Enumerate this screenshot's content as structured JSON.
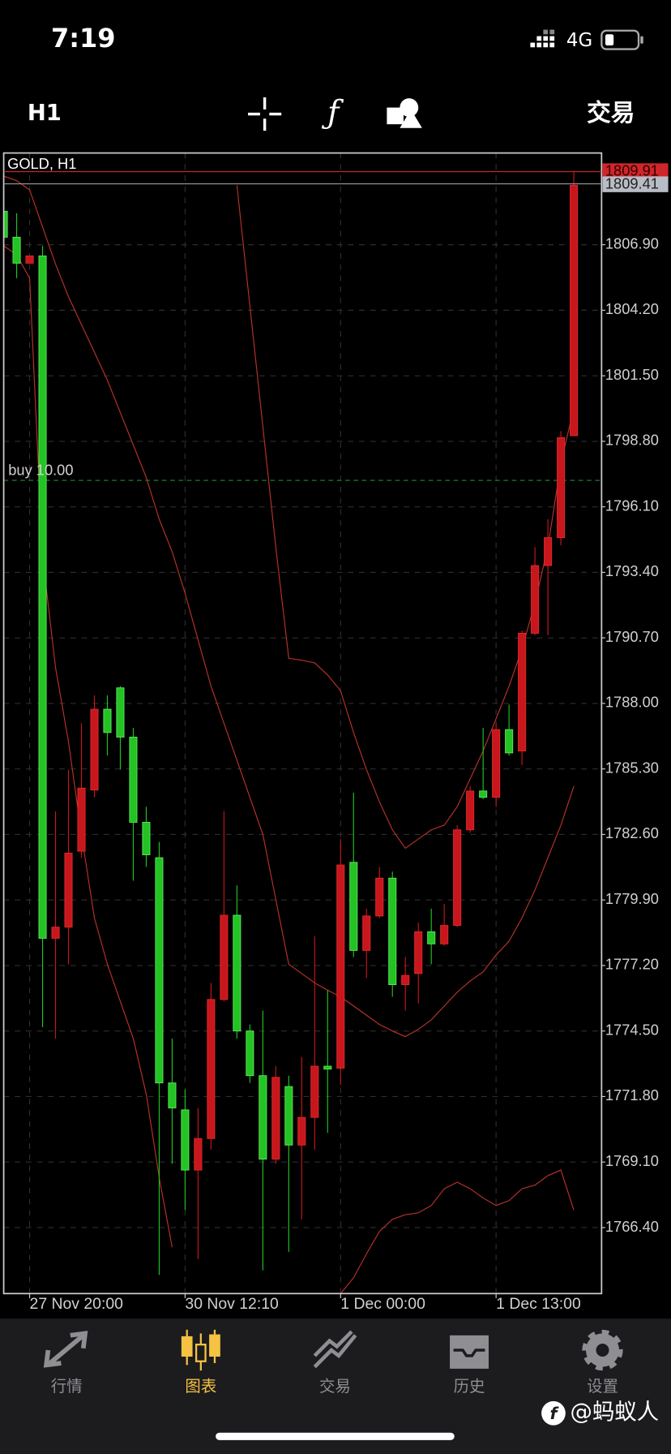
{
  "status_bar": {
    "time": "7:19",
    "network": "4G"
  },
  "toolbar": {
    "timeframe": "H1",
    "trade": "交易"
  },
  "chart_data": {
    "type": "candlestick",
    "title": "GOLD, H1",
    "categories": [
      null,
      null,
      "27 Nov 20:00",
      null,
      null,
      null,
      null,
      null,
      null,
      null,
      null,
      null,
      null,
      null,
      "30 Nov 12:10",
      null,
      null,
      null,
      null,
      null,
      null,
      null,
      null,
      null,
      null,
      null,
      "1 Dec 00:00",
      null,
      null,
      null,
      null,
      null,
      null,
      null,
      null,
      null,
      null,
      null,
      "1 Dec 13:00",
      null,
      null,
      null,
      null,
      null,
      null
    ],
    "open": [
      1808.28,
      1807.21,
      1806.14,
      1806.44,
      1778.32,
      1778.78,
      1781.91,
      1784.43,
      1787.76,
      1788.64,
      1786.61,
      1783.1,
      1781.64,
      1772.36,
      1771.25,
      1768.77,
      1770.07,
      1775.8,
      1779.27,
      1774.5,
      1772.66,
      1769.22,
      1772.21,
      1769.8,
      1770.94,
      1773.05,
      1772.97,
      1781.45,
      1777.82,
      1779.24,
      1780.8,
      1776.41,
      1776.87,
      1778.59,
      1778.09,
      1778.85,
      1782.79,
      1784.39,
      1784.13,
      1786.92,
      1786.04,
      1790.89,
      1793.68,
      1794.83,
      1799.03
    ],
    "high": [
      1808.4,
      1808.2,
      1806.44,
      1806.86,
      1783.55,
      1785.27,
      1787.18,
      1788.33,
      1788.33,
      1788.71,
      1786.99,
      1783.74,
      1782.29,
      1774.19,
      1772.09,
      1771.33,
      1776.48,
      1783.55,
      1780.5,
      1774.77,
      1775.34,
      1773.05,
      1772.66,
      1773.43,
      1778.4,
      1776.18,
      1782.41,
      1784.32,
      1779.54,
      1781.26,
      1781.07,
      1777.55,
      1778.97,
      1779.54,
      1779.73,
      1782.98,
      1784.59,
      1786.99,
      1787.18,
      1787.95,
      1791.0,
      1794.44,
      1795.59,
      1799.22,
      1809.92
    ],
    "low": [
      1807.1,
      1805.52,
      1806.14,
      1774.65,
      1774.19,
      1777.25,
      1781.64,
      1784.13,
      1785.85,
      1785.27,
      1780.69,
      1781.26,
      1764.45,
      1769.03,
      1767.12,
      1765.1,
      1769.61,
      1775.72,
      1774.19,
      1772.36,
      1764.64,
      1769.03,
      1765.4,
      1766.74,
      1769.61,
      1770.3,
      1772.28,
      1777.55,
      1776.68,
      1779.16,
      1775.91,
      1775.34,
      1775.64,
      1777.25,
      1778.01,
      1778.78,
      1782.67,
      1784.05,
      1783.74,
      1785.85,
      1785.46,
      1790.81,
      1790.81,
      1794.52,
      1799.03
    ],
    "close": [
      1807.21,
      1806.14,
      1806.44,
      1778.32,
      1778.78,
      1781.83,
      1784.51,
      1787.76,
      1786.8,
      1786.61,
      1783.1,
      1781.76,
      1772.36,
      1771.33,
      1768.77,
      1770.07,
      1775.8,
      1779.27,
      1774.5,
      1772.66,
      1769.22,
      1772.59,
      1769.8,
      1770.94,
      1773.05,
      1772.93,
      1781.34,
      1777.82,
      1779.24,
      1780.8,
      1776.41,
      1776.79,
      1778.59,
      1778.09,
      1778.85,
      1782.79,
      1784.39,
      1784.13,
      1786.92,
      1785.96,
      1790.89,
      1793.68,
      1794.83,
      1798.95,
      1809.35
    ],
    "up_color": "#c8161d",
    "down_color": "#22c322",
    "indicators": [
      {
        "color": "#b8332a",
        "values": [
          null,
          null,
          null,
          null,
          null,
          null,
          null,
          null,
          null,
          null,
          null,
          null,
          null,
          null,
          null,
          null,
          null,
          null,
          1809.35,
          1804.38,
          1799.41,
          1794.44,
          1789.86,
          1789.78,
          1789.67,
          1789.17,
          1788.52,
          1786.8,
          1785.27,
          1783.94,
          1782.79,
          1782.03,
          1782.41,
          1782.79,
          1782.98,
          1783.74,
          1784.89,
          1786.04,
          1787.37,
          1788.71,
          1790.24,
          1792.15,
          1794.44,
          1797.88,
          1800.18
        ]
      },
      {
        "color": "#b8332a",
        "values": [
          1809.73,
          1809.54,
          1809.16,
          1807.63,
          1806.1,
          1804.76,
          1803.61,
          1802.47,
          1801.32,
          1799.98,
          1798.65,
          1797.31,
          1795.59,
          1794.25,
          1792.53,
          1790.62,
          1788.71,
          1787.18,
          1785.66,
          1784.13,
          1782.6,
          1779.92,
          1777.25,
          1776.87,
          1776.48,
          1776.18,
          1775.91,
          1775.53,
          1775.15,
          1774.77,
          1774.5,
          1774.27,
          1774.57,
          1774.96,
          1775.53,
          1776.1,
          1776.56,
          1776.94,
          1777.63,
          1778.2,
          1779.16,
          1780.31,
          1781.64,
          1782.98,
          1784.59
        ]
      },
      {
        "color": "#b8332a",
        "values": [
          1806.86,
          1806.48,
          1805.52,
          1794.06,
          1789.48,
          1786.42,
          1782.6,
          1779.16,
          1777.25,
          1775.72,
          1774.19,
          1771.9,
          1768.46,
          1765.59,
          null,
          null,
          null,
          null,
          null,
          null,
          null,
          null,
          null,
          null,
          null,
          null,
          1763.68,
          1764.33,
          1765.32,
          1766.24,
          1766.74,
          1766.93,
          1767.01,
          1767.31,
          1768.0,
          1768.27,
          1768.0,
          1767.62,
          1767.31,
          1767.51,
          1768.0,
          1768.15,
          1768.54,
          1768.77,
          1767.12
        ]
      }
    ],
    "ylim": [
      1763.68,
      1810.68
    ],
    "yticks": [
      {
        "value": 1806.9,
        "label": "1806.90"
      },
      {
        "value": 1804.2,
        "label": "1804.20"
      },
      {
        "value": 1801.5,
        "label": "1801.50"
      },
      {
        "value": 1798.8,
        "label": "1798.80"
      },
      {
        "value": 1796.1,
        "label": "1796.10"
      },
      {
        "value": 1793.4,
        "label": "1793.40"
      },
      {
        "value": 1790.7,
        "label": "1790.70"
      },
      {
        "value": 1788.0,
        "label": "1788.00"
      },
      {
        "value": 1785.3,
        "label": "1785.30"
      },
      {
        "value": 1782.6,
        "label": "1782.60"
      },
      {
        "value": 1779.9,
        "label": "1779.90"
      },
      {
        "value": 1777.2,
        "label": "1777.20"
      },
      {
        "value": 1774.5,
        "label": "1774.50"
      },
      {
        "value": 1771.8,
        "label": "1771.80"
      },
      {
        "value": 1769.1,
        "label": "1769.10"
      },
      {
        "value": 1766.4,
        "label": "1766.40"
      }
    ],
    "grid": true,
    "bid": 1809.41,
    "ask": 1809.91,
    "order": {
      "label": "buy 10.00",
      "price": 1797.19
    }
  },
  "nav": {
    "items": [
      "行情",
      "图表",
      "交易",
      "历史",
      "设置"
    ],
    "active": 1
  },
  "watermark": "@蚂蚁人"
}
